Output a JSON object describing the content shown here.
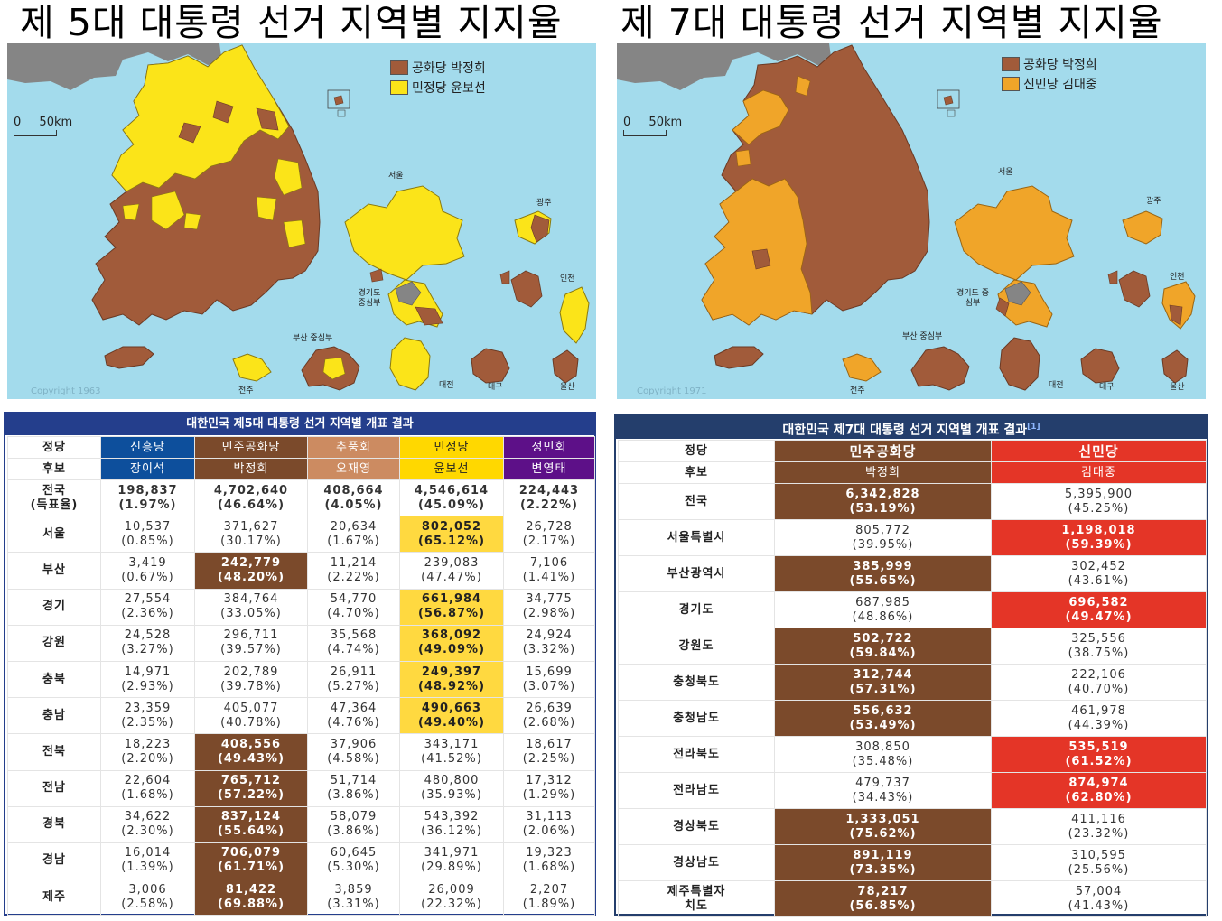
{
  "left": {
    "title": "제 5대 대통령 선거 지역별 지지율",
    "legend": [
      {
        "label": "공화당 박정희",
        "color": "#a15b3a"
      },
      {
        "label": "민정당 윤보선",
        "color": "#fbe419"
      }
    ],
    "scale": {
      "zero": "0",
      "fifty": "50",
      "unit": "km"
    },
    "inset_labels": [
      "서울",
      "광주",
      "인천",
      "경기도 중심부",
      "부산 중심부",
      "전주",
      "대전",
      "대구",
      "울산"
    ],
    "watermark": "Copyright 1963",
    "table": {
      "caption": "대한민국 제5대 대통령 선거 지역별 개표 결과",
      "party_label": "정당",
      "candidate_label": "후보",
      "parties": [
        "신흥당",
        "민주공화당",
        "추풍회",
        "민정당",
        "정민회"
      ],
      "party_colors": [
        "#0d4f9c",
        "#7b4a2b",
        "#cc8b61",
        "#ffd800",
        "#5d1088"
      ],
      "party_text_colors": [
        "#ffffff",
        "#ffffff",
        "#ffffff",
        "#222222",
        "#ffffff"
      ],
      "candidates": [
        "장이석",
        "박정희",
        "오재영",
        "윤보선",
        "변영태"
      ],
      "rows": [
        {
          "region": "전국\n(득표율)",
          "win": -1,
          "bold": true,
          "cells": [
            [
              "198,837",
              "(1.97%)"
            ],
            [
              "4,702,640",
              "(46.64%)"
            ],
            [
              "408,664",
              "(4.05%)"
            ],
            [
              "4,546,614",
              "(45.09%)"
            ],
            [
              "224,443",
              "(2.22%)"
            ]
          ]
        },
        {
          "region": "서울",
          "win": 3,
          "cells": [
            [
              "10,537",
              "(0.85%)"
            ],
            [
              "371,627",
              "(30.17%)"
            ],
            [
              "20,634",
              "(1.67%)"
            ],
            [
              "802,052",
              "(65.12%)"
            ],
            [
              "26,728",
              "(2.17%)"
            ]
          ]
        },
        {
          "region": "부산",
          "win": 1,
          "cells": [
            [
              "3,419",
              "(0.67%)"
            ],
            [
              "242,779",
              "(48.20%)"
            ],
            [
              "11,214",
              "(2.22%)"
            ],
            [
              "239,083",
              "(47.47%)"
            ],
            [
              "7,106",
              "(1.41%)"
            ]
          ]
        },
        {
          "region": "경기",
          "win": 3,
          "cells": [
            [
              "27,554",
              "(2.36%)"
            ],
            [
              "384,764",
              "(33.05%)"
            ],
            [
              "54,770",
              "(4.70%)"
            ],
            [
              "661,984",
              "(56.87%)"
            ],
            [
              "34,775",
              "(2.98%)"
            ]
          ]
        },
        {
          "region": "강원",
          "win": 3,
          "cells": [
            [
              "24,528",
              "(3.27%)"
            ],
            [
              "296,711",
              "(39.57%)"
            ],
            [
              "35,568",
              "(4.74%)"
            ],
            [
              "368,092",
              "(49.09%)"
            ],
            [
              "24,924",
              "(3.32%)"
            ]
          ]
        },
        {
          "region": "충북",
          "win": 3,
          "cells": [
            [
              "14,971",
              "(2.93%)"
            ],
            [
              "202,789",
              "(39.78%)"
            ],
            [
              "26,911",
              "(5.27%)"
            ],
            [
              "249,397",
              "(48.92%)"
            ],
            [
              "15,699",
              "(3.07%)"
            ]
          ]
        },
        {
          "region": "충남",
          "win": 3,
          "cells": [
            [
              "23,359",
              "(2.35%)"
            ],
            [
              "405,077",
              "(40.78%)"
            ],
            [
              "47,364",
              "(4.76%)"
            ],
            [
              "490,663",
              "(49.40%)"
            ],
            [
              "26,639",
              "(2.68%)"
            ]
          ]
        },
        {
          "region": "전북",
          "win": 1,
          "cells": [
            [
              "18,223",
              "(2.20%)"
            ],
            [
              "408,556",
              "(49.43%)"
            ],
            [
              "37,906",
              "(4.58%)"
            ],
            [
              "343,171",
              "(41.52%)"
            ],
            [
              "18,617",
              "(2.25%)"
            ]
          ]
        },
        {
          "region": "전남",
          "win": 1,
          "cells": [
            [
              "22,604",
              "(1.68%)"
            ],
            [
              "765,712",
              "(57.22%)"
            ],
            [
              "51,714",
              "(3.86%)"
            ],
            [
              "480,800",
              "(35.93%)"
            ],
            [
              "17,312",
              "(1.29%)"
            ]
          ]
        },
        {
          "region": "경북",
          "win": 1,
          "cells": [
            [
              "34,622",
              "(2.30%)"
            ],
            [
              "837,124",
              "(55.64%)"
            ],
            [
              "58,079",
              "(3.86%)"
            ],
            [
              "543,392",
              "(36.12%)"
            ],
            [
              "31,113",
              "(2.06%)"
            ]
          ]
        },
        {
          "region": "경남",
          "win": 1,
          "cells": [
            [
              "16,014",
              "(1.39%)"
            ],
            [
              "706,079",
              "(61.71%)"
            ],
            [
              "60,645",
              "(5.30%)"
            ],
            [
              "341,971",
              "(29.89%)"
            ],
            [
              "19,323",
              "(1.68%)"
            ]
          ]
        },
        {
          "region": "제주",
          "win": 1,
          "cells": [
            [
              "3,006",
              "(2.58%)"
            ],
            [
              "81,422",
              "(69.88%)"
            ],
            [
              "3,859",
              "(3.31%)"
            ],
            [
              "26,009",
              "(22.32%)"
            ],
            [
              "2,207",
              "(1.89%)"
            ]
          ]
        }
      ]
    }
  },
  "right": {
    "title": "제 7대 대통령 선거 지역별 지지율",
    "legend": [
      {
        "label": "공화당 박정희",
        "color": "#a15b3a"
      },
      {
        "label": "신민당 김대중",
        "color": "#f0a529"
      }
    ],
    "scale": {
      "zero": "0",
      "fifty": "50",
      "unit": "km"
    },
    "inset_labels": [
      "서울",
      "광주",
      "인천",
      "경기도 중심부",
      "부산 중심부",
      "전주",
      "대전",
      "대구",
      "울산"
    ],
    "watermark": "Copyright 1971",
    "table": {
      "caption": "대한민국 제7대 대통령 선거 지역별 개표 결과",
      "caption_ref": "[1]",
      "party_label": "정당",
      "candidate_label": "후보",
      "parties": [
        "민주공화당",
        "신민당"
      ],
      "party_colors": [
        "#7b4a2b",
        "#e43527"
      ],
      "party_text_colors": [
        "#ffffff",
        "#ffffff"
      ],
      "candidates": [
        "박정희",
        "김대중"
      ],
      "rows": [
        {
          "region": "전국",
          "win": 0,
          "cells": [
            [
              "6,342,828",
              "(53.19%)"
            ],
            [
              "5,395,900",
              "(45.25%)"
            ]
          ]
        },
        {
          "region": "서울특별시",
          "win": 1,
          "cells": [
            [
              "805,772",
              "(39.95%)"
            ],
            [
              "1,198,018",
              "(59.39%)"
            ]
          ]
        },
        {
          "region": "부산광역시",
          "win": 0,
          "cells": [
            [
              "385,999",
              "(55.65%)"
            ],
            [
              "302,452",
              "(43.61%)"
            ]
          ]
        },
        {
          "region": "경기도",
          "win": 1,
          "cells": [
            [
              "687,985",
              "(48.86%)"
            ],
            [
              "696,582",
              "(49.47%)"
            ]
          ]
        },
        {
          "region": "강원도",
          "win": 0,
          "cells": [
            [
              "502,722",
              "(59.84%)"
            ],
            [
              "325,556",
              "(38.75%)"
            ]
          ]
        },
        {
          "region": "충청북도",
          "win": 0,
          "cells": [
            [
              "312,744",
              "(57.31%)"
            ],
            [
              "222,106",
              "(40.70%)"
            ]
          ]
        },
        {
          "region": "충청남도",
          "win": 0,
          "cells": [
            [
              "556,632",
              "(53.49%)"
            ],
            [
              "461,978",
              "(44.39%)"
            ]
          ]
        },
        {
          "region": "전라북도",
          "win": 1,
          "cells": [
            [
              "308,850",
              "(35.48%)"
            ],
            [
              "535,519",
              "(61.52%)"
            ]
          ]
        },
        {
          "region": "전라남도",
          "win": 1,
          "cells": [
            [
              "479,737",
              "(34.43%)"
            ],
            [
              "874,974",
              "(62.80%)"
            ]
          ]
        },
        {
          "region": "경상북도",
          "win": 0,
          "cells": [
            [
              "1,333,051",
              "(75.62%)"
            ],
            [
              "411,116",
              "(23.32%)"
            ]
          ]
        },
        {
          "region": "경상남도",
          "win": 0,
          "cells": [
            [
              "891,119",
              "(73.35%)"
            ],
            [
              "310,595",
              "(25.56%)"
            ]
          ]
        },
        {
          "region": "제주특별자\n치도",
          "win": 0,
          "cells": [
            [
              "78,217",
              "(56.85%)"
            ],
            [
              "57,004",
              "(41.43%)"
            ]
          ]
        }
      ]
    }
  }
}
